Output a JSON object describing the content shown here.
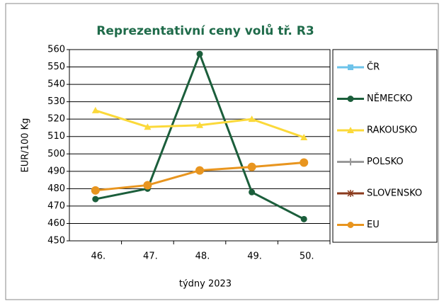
{
  "chart_data": {
    "type": "line",
    "title": "Reprezentativní  ceny volů tř. R3",
    "y_label": "EUR/100 Kg",
    "x_label": "týdny 2023",
    "categories": [
      "46.",
      "47.",
      "48.",
      "49.",
      "50."
    ],
    "ylim": [
      450,
      560
    ],
    "yticks": [
      450,
      460,
      470,
      480,
      490,
      500,
      510,
      520,
      530,
      540,
      550,
      560
    ],
    "grid": true,
    "legend": "right",
    "series": [
      {
        "name": "ČR",
        "color": "#6ec3ea",
        "marker": "square",
        "values": [
          null,
          null,
          null,
          null,
          null
        ]
      },
      {
        "name": "NĚMECKO",
        "color": "#1b5e3b",
        "marker": "circle",
        "values": [
          474,
          480,
          557.5,
          478,
          462.5
        ]
      },
      {
        "name": "RAKOUSKO",
        "color": "#fbd93a",
        "marker": "triangle",
        "values": [
          525,
          515.5,
          516.5,
          520,
          509.5
        ]
      },
      {
        "name": "POLSKO",
        "color": "#999999",
        "marker": "plus",
        "values": [
          null,
          null,
          null,
          null,
          null
        ]
      },
      {
        "name": "SLOVENSKO",
        "color": "#8b3b1d",
        "marker": "star",
        "values": [
          null,
          null,
          null,
          null,
          null
        ]
      },
      {
        "name": "EU",
        "color": "#e8951f",
        "marker": "bigcircle",
        "values": [
          479,
          482,
          490.5,
          492.5,
          495
        ]
      }
    ]
  }
}
